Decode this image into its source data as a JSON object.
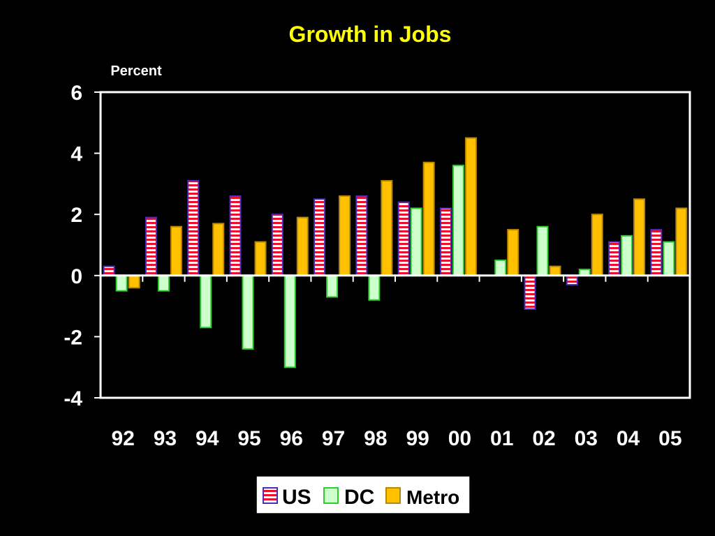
{
  "colors": {
    "background": "#000000",
    "title": "#ffff00",
    "axis": "#ffffff",
    "us_stripe_red": "#e8102a",
    "us_stripe_white": "#ffffff",
    "us_border": "#4b2bb8",
    "dc_fill": "#ccffcc",
    "dc_border": "#2ecc2e",
    "metro_fill": "#ffc000",
    "metro_border": "#b8860b"
  },
  "chart_data": {
    "type": "bar",
    "title": "Growth in Jobs",
    "ylabel": "Percent",
    "xlabel": "",
    "ylim": [
      -4,
      6
    ],
    "yticks": [
      6,
      4,
      2,
      0,
      -2,
      -4
    ],
    "categories": [
      "92",
      "93",
      "94",
      "95",
      "96",
      "97",
      "98",
      "99",
      "00",
      "01",
      "02",
      "03",
      "04",
      "05"
    ],
    "series": [
      {
        "name": "US",
        "values": [
          0.3,
          1.9,
          3.1,
          2.6,
          2.0,
          2.5,
          2.6,
          2.4,
          2.2,
          0.0,
          -1.1,
          -0.3,
          1.1,
          1.5
        ]
      },
      {
        "name": "DC",
        "values": [
          -0.5,
          -0.5,
          -1.7,
          -2.4,
          -3.0,
          -0.7,
          -0.8,
          2.2,
          3.6,
          0.5,
          1.6,
          0.2,
          1.3,
          1.1
        ]
      },
      {
        "name": "Metro",
        "values": [
          -0.4,
          1.6,
          1.7,
          1.1,
          1.9,
          2.6,
          3.1,
          3.7,
          4.5,
          1.5,
          0.3,
          2.0,
          2.5,
          2.2
        ]
      }
    ],
    "grid": false,
    "legend_position": "bottom-center"
  }
}
